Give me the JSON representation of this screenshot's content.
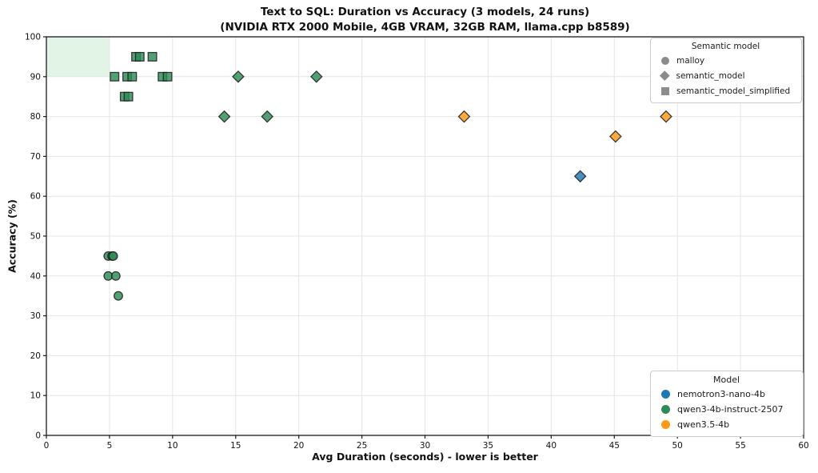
{
  "title": {
    "line1": "Text to SQL: Duration vs Accuracy (3 models, 24 runs)",
    "line2": "(NVIDIA RTX 2000 Mobile, 4GB VRAM, 32GB RAM, llama.cpp b8589)"
  },
  "chart_data": {
    "type": "scatter",
    "xlabel": "Avg Duration (seconds) - lower is better",
    "ylabel": "Accuracy (%)",
    "xlim": [
      0,
      60
    ],
    "ylim": [
      0,
      100
    ],
    "xticks": [
      0,
      5,
      10,
      15,
      20,
      25,
      30,
      35,
      40,
      45,
      50,
      55,
      60
    ],
    "yticks": [
      0,
      10,
      20,
      30,
      40,
      50,
      60,
      70,
      80,
      90,
      100
    ],
    "grid": true,
    "highlight_region": {
      "x0": 0,
      "x1": 5,
      "y0": 90,
      "y1": 100,
      "color": "#e2f4e5"
    },
    "series": [
      {
        "model": "qwen3-4b-instruct-2507",
        "semantic_model": "semantic_model_simplified",
        "marker": "square",
        "color": "#2e8b57",
        "points": [
          [
            5.4,
            90
          ],
          [
            6.4,
            90
          ],
          [
            6.8,
            90
          ],
          [
            9.2,
            90
          ],
          [
            9.6,
            90
          ],
          [
            7.1,
            95
          ],
          [
            7.4,
            95
          ],
          [
            8.4,
            95
          ],
          [
            6.2,
            85
          ],
          [
            6.5,
            85
          ]
        ]
      },
      {
        "model": "qwen3-4b-instruct-2507",
        "semantic_model": "semantic_model",
        "marker": "diamond",
        "color": "#2e8b57",
        "points": [
          [
            14.1,
            80
          ],
          [
            17.5,
            80
          ],
          [
            15.2,
            90
          ],
          [
            21.4,
            90
          ]
        ]
      },
      {
        "model": "qwen3-4b-instruct-2507",
        "semantic_model": "malloy",
        "marker": "circle",
        "color": "#2e8b57",
        "points": [
          [
            4.9,
            45
          ],
          [
            5.2,
            45
          ],
          [
            5.3,
            45
          ],
          [
            4.9,
            40
          ],
          [
            5.5,
            40
          ],
          [
            5.7,
            35
          ]
        ]
      },
      {
        "model": "qwen3.5-4b",
        "semantic_model": "semantic_model",
        "marker": "diamond",
        "color": "#ff9913",
        "points": [
          [
            33.1,
            80
          ],
          [
            45.1,
            75
          ],
          [
            49.1,
            80
          ]
        ]
      },
      {
        "model": "nemotron3-nano-4b",
        "semantic_model": "semantic_model",
        "marker": "diamond",
        "color": "#1f77b4",
        "points": [
          [
            42.3,
            65
          ]
        ]
      }
    ],
    "marker_legend": {
      "title": "Semantic model",
      "marker_color": "#8c8c8c",
      "items": [
        {
          "label": "malloy",
          "marker": "circle"
        },
        {
          "label": "semantic_model",
          "marker": "diamond"
        },
        {
          "label": "semantic_model_simplified",
          "marker": "square"
        }
      ]
    },
    "model_legend": {
      "title": "Model",
      "items": [
        {
          "label": "nemotron3-nano-4b",
          "color": "#1f77b4"
        },
        {
          "label": "qwen3-4b-instruct-2507",
          "color": "#2e8b57"
        },
        {
          "label": "qwen3.5-4b",
          "color": "#ff9913"
        }
      ]
    }
  }
}
